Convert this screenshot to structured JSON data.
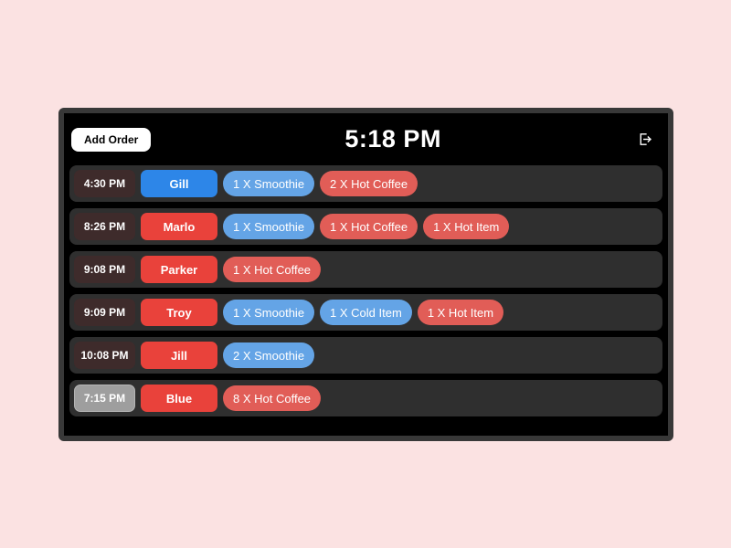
{
  "window": {
    "clock": "5:18 PM"
  },
  "header": {
    "add_order_label": "Add Order",
    "logout_icon": "logout-icon"
  },
  "colors": {
    "page_bg": "#fbe2e2",
    "bezel": "#383838",
    "screen_bg": "#000000",
    "row_bg": "#2f2f2f",
    "time_chip_bg": "#3e2b2b",
    "time_chip_gray_bg": "#9e9e9e",
    "name_blue": "#2d86e8",
    "name_red": "#e9423b",
    "item_blue": "#64a4e6",
    "item_red": "#e15d57",
    "text_light": "#ffffff"
  },
  "orders": [
    {
      "time": "4:30 PM",
      "time_style": "dark",
      "name": "Gill",
      "name_color": "blue",
      "items": [
        {
          "label": "1 X Smoothie",
          "color": "blue"
        },
        {
          "label": "2 X Hot Coffee",
          "color": "red"
        }
      ]
    },
    {
      "time": "8:26 PM",
      "time_style": "dark",
      "name": "Marlo",
      "name_color": "red",
      "items": [
        {
          "label": "1 X Smoothie",
          "color": "blue"
        },
        {
          "label": "1 X Hot Coffee",
          "color": "red"
        },
        {
          "label": "1 X Hot Item",
          "color": "red"
        }
      ]
    },
    {
      "time": "9:08 PM",
      "time_style": "dark",
      "name": "Parker",
      "name_color": "red",
      "items": [
        {
          "label": "1 X Hot Coffee",
          "color": "red"
        }
      ]
    },
    {
      "time": "9:09 PM",
      "time_style": "dark",
      "name": "Troy",
      "name_color": "red",
      "items": [
        {
          "label": "1 X Smoothie",
          "color": "blue"
        },
        {
          "label": "1 X Cold Item",
          "color": "blue"
        },
        {
          "label": "1 X Hot Item",
          "color": "red"
        }
      ]
    },
    {
      "time": "10:08 PM",
      "time_style": "dark",
      "name": "Jill",
      "name_color": "red",
      "items": [
        {
          "label": "2 X Smoothie",
          "color": "blue"
        }
      ]
    },
    {
      "time": "7:15 PM",
      "time_style": "gray",
      "name": "Blue",
      "name_color": "red",
      "items": [
        {
          "label": "8 X Hot Coffee",
          "color": "red"
        }
      ]
    }
  ]
}
